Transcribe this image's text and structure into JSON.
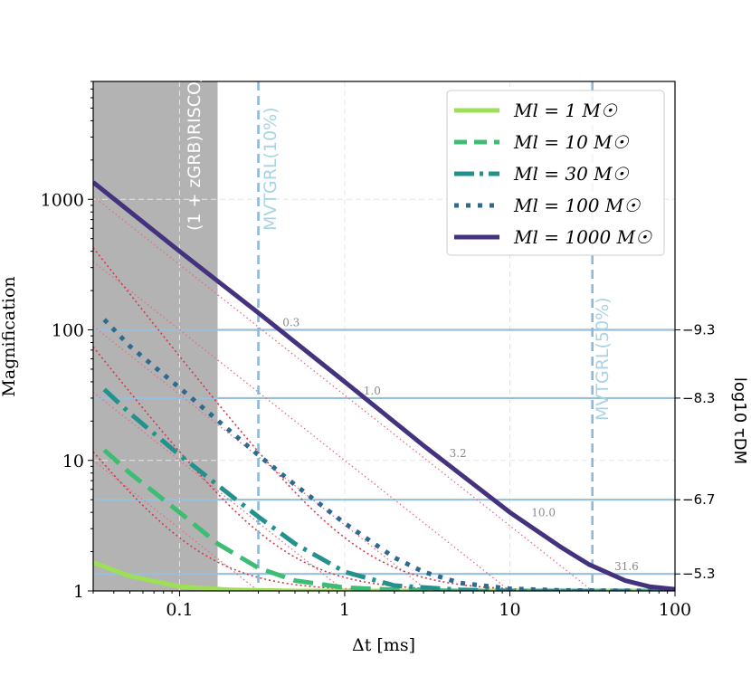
{
  "chart_data": {
    "type": "line",
    "xlabel": "Δt [ms]",
    "ylabel": "Magnification",
    "right_ylabel": "log10 τDM",
    "xscale": "log",
    "yscale": "log",
    "xlim": [
      0.03,
      100
    ],
    "ylim": [
      1,
      8000
    ],
    "x_ticks": [
      0.1,
      1,
      10,
      100
    ],
    "x_tick_labels": [
      "0.1",
      "1",
      "10",
      "100"
    ],
    "y_ticks": [
      1,
      10,
      100,
      1000
    ],
    "y_tick_labels": [
      "1",
      "10",
      "100",
      "1000"
    ],
    "right_axis_ticks": [
      {
        "magnification": 100,
        "label": "-9.3"
      },
      {
        "magnification": 30,
        "label": "-8.3"
      },
      {
        "magnification": 5,
        "label": "-6.7"
      },
      {
        "magnification": 1.35,
        "label": "-5.3"
      }
    ],
    "grid": true,
    "legend_position": "top-right",
    "shaded_region": {
      "x_max": 0.17,
      "label": "(1 + zGRB)RISCO/c",
      "color": "#b3b3b3"
    },
    "vertical_lines": [
      {
        "x": 0.3,
        "label": "MVTGRL(10%)",
        "color": "#8fb8d8"
      },
      {
        "x": 31.6,
        "label": "MVTGRL(50%)",
        "color": "#8fb8d8"
      }
    ],
    "diagonal_labels": [
      "0.3",
      "1.0",
      "3.2",
      "10.0",
      "31.6"
    ],
    "series": [
      {
        "name": "Ml = 1 M☉",
        "mass": 1,
        "color": "#9de055",
        "style": "solid",
        "x": [
          0.03,
          0.05,
          0.1,
          0.2,
          0.5,
          1,
          10,
          100
        ],
        "y": [
          1.65,
          1.3,
          1.08,
          1.02,
          1.0,
          1.0,
          1.0,
          1.0
        ]
      },
      {
        "name": "Ml = 10 M☉",
        "mass": 10,
        "color": "#3dbc74",
        "style": "dashed",
        "x": [
          0.035,
          0.05,
          0.1,
          0.17,
          0.3,
          0.5,
          1,
          2,
          5,
          10,
          100
        ],
        "y": [
          12,
          8,
          4,
          2.3,
          1.5,
          1.2,
          1.06,
          1.02,
          1.0,
          1.0,
          1.0
        ]
      },
      {
        "name": "Ml = 30 M☉",
        "mass": 30,
        "color": "#23918c",
        "style": "dashdot",
        "x": [
          0.035,
          0.05,
          0.1,
          0.2,
          0.3,
          0.5,
          1,
          2,
          5,
          10,
          100
        ],
        "y": [
          35,
          23,
          11,
          5.5,
          3.7,
          2.3,
          1.4,
          1.1,
          1.02,
          1.0,
          1.0
        ]
      },
      {
        "name": "Ml = 100 M☉",
        "mass": 100,
        "color": "#2f6a8e",
        "style": "dotted",
        "x": [
          0.035,
          0.05,
          0.1,
          0.2,
          0.3,
          0.5,
          1,
          2,
          3,
          5,
          10,
          20,
          100
        ],
        "y": [
          120,
          75,
          36,
          17,
          11,
          6.5,
          3.3,
          1.8,
          1.4,
          1.15,
          1.04,
          1.01,
          1.0
        ]
      },
      {
        "name": "Ml = 1000 M☉",
        "mass": 1000,
        "color": "#45327f",
        "style": "solid",
        "x": [
          0.03,
          0.1,
          0.3,
          1,
          3,
          10,
          20,
          30,
          50,
          70,
          100
        ],
        "y": [
          1350,
          400,
          135,
          40,
          13,
          4,
          2.2,
          1.6,
          1.2,
          1.08,
          1.03
        ]
      }
    ]
  }
}
